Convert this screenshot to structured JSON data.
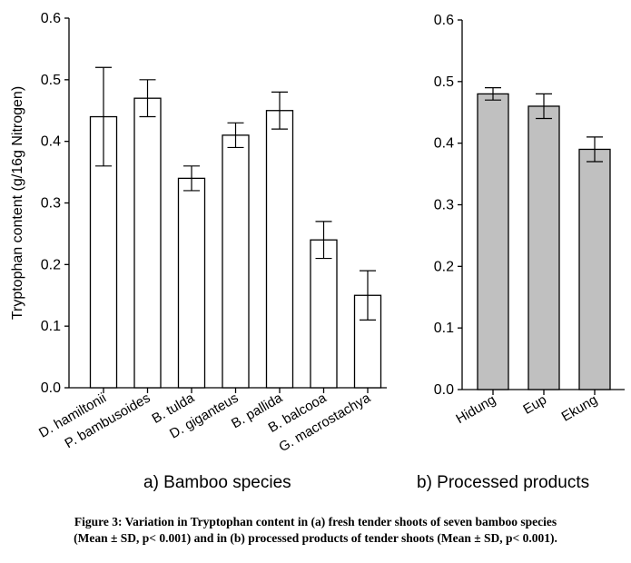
{
  "chart_data": [
    {
      "type": "bar",
      "categories": [
        "D. hamiltonii",
        "P. bambusoides",
        "B. tulda",
        "D. giganteus",
        "B. pallida",
        "B. balcooa",
        "G. macrostachya"
      ],
      "values": [
        0.44,
        0.47,
        0.34,
        0.41,
        0.45,
        0.24,
        0.15
      ],
      "errors": [
        0.08,
        0.03,
        0.02,
        0.02,
        0.03,
        0.03,
        0.04
      ],
      "ylabel": "Tryptophan content (g/16g Nitrogen)",
      "ylim": [
        0,
        0.6
      ],
      "yticks": [
        "0.0",
        "0.1",
        "0.2",
        "0.3",
        "0.4",
        "0.5",
        "0.6"
      ],
      "bar_color": "#ffffff",
      "subcaption": "a) Bamboo species"
    },
    {
      "type": "bar",
      "categories": [
        "Hidung",
        "Eup",
        "Ekung"
      ],
      "values": [
        0.48,
        0.46,
        0.39
      ],
      "errors": [
        0.01,
        0.02,
        0.02
      ],
      "ylim": [
        0,
        0.6
      ],
      "yticks": [
        "0.0",
        "0.1",
        "0.2",
        "0.3",
        "0.4",
        "0.5",
        "0.6"
      ],
      "bar_color": "#c0c0c0",
      "subcaption": "b) Processed products"
    }
  ],
  "caption": {
    "line1": "Figure 3: Variation in Tryptophan content in (a) fresh tender shoots of seven bamboo species",
    "line2": "(Mean ± SD, p< 0.001) and in (b) processed products of tender shoots (Mean ± SD, p< 0.001)."
  }
}
